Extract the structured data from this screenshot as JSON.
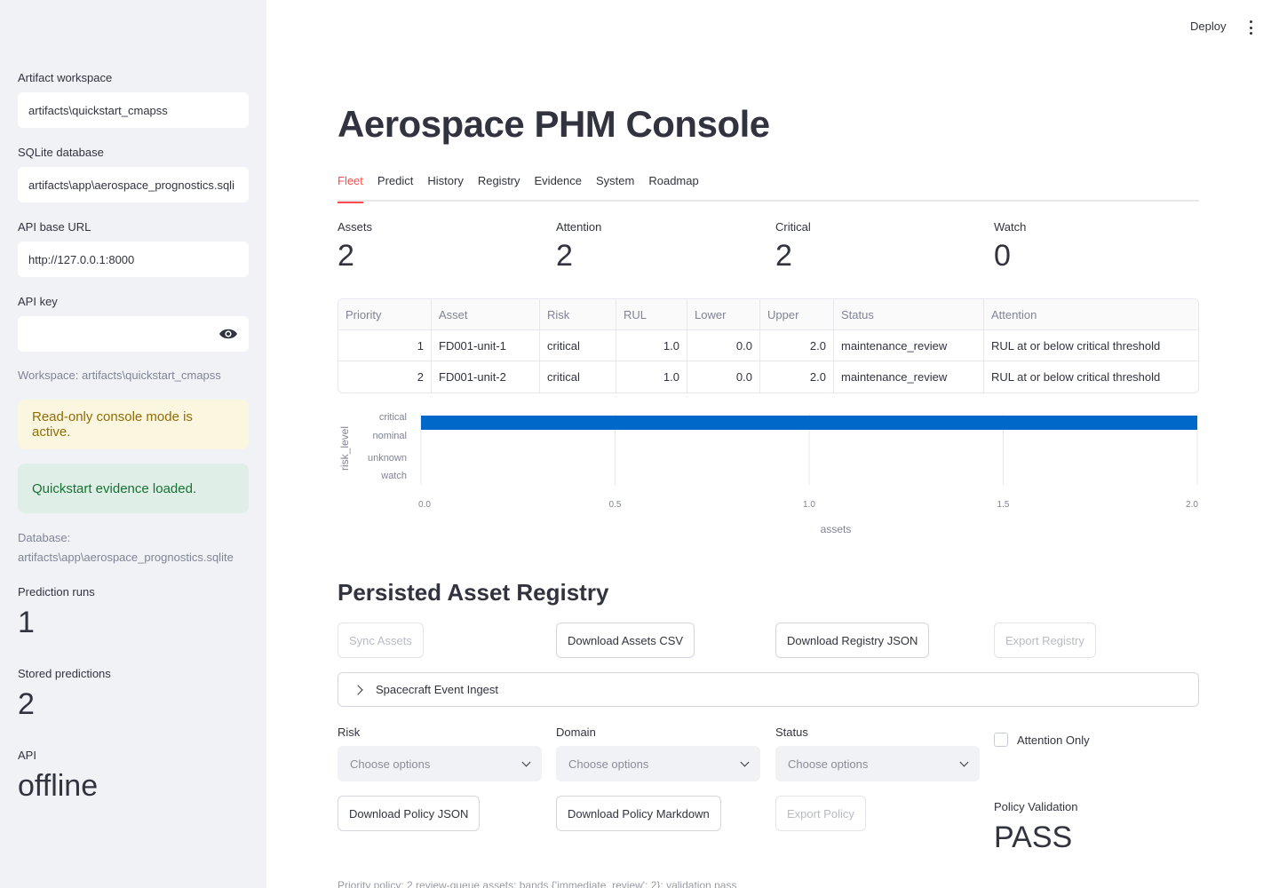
{
  "sidebar": {
    "workspace_label": "Artifact workspace",
    "workspace_value": "artifacts\\quickstart_cmapss",
    "db_label": "SQLite database",
    "db_value": "artifacts\\app\\aerospace_prognostics.sqli",
    "api_url_label": "API base URL",
    "api_url_value": "http://127.0.0.1:8000",
    "api_key_label": "API key",
    "api_key_value": "",
    "workspace_caption": "Workspace: artifacts\\quickstart_cmapss",
    "alert_readonly": "Read-only console mode is active.",
    "alert_quickstart": "Quickstart evidence loaded.",
    "database_caption_line1": "Database:",
    "database_caption_line2": "artifacts\\app\\aerospace_prognostics.sqlite",
    "prediction_runs_label": "Prediction runs",
    "prediction_runs_value": "1",
    "stored_predictions_label": "Stored predictions",
    "stored_predictions_value": "2",
    "api_label": "API",
    "api_value": "offline"
  },
  "header": {
    "deploy_label": "Deploy"
  },
  "main": {
    "title": "Aerospace PHM Console",
    "tabs": [
      {
        "label": "Fleet",
        "active": true
      },
      {
        "label": "Predict"
      },
      {
        "label": "History"
      },
      {
        "label": "Registry"
      },
      {
        "label": "Evidence"
      },
      {
        "label": "System"
      },
      {
        "label": "Roadmap"
      }
    ],
    "metrics": [
      {
        "label": "Assets",
        "value": "2"
      },
      {
        "label": "Attention",
        "value": "2"
      },
      {
        "label": "Critical",
        "value": "2"
      },
      {
        "label": "Watch",
        "value": "0"
      }
    ],
    "table": {
      "columns": [
        "Priority",
        "Asset",
        "Risk",
        "RUL",
        "Lower",
        "Upper",
        "Status",
        "Attention"
      ],
      "rows": [
        [
          "1",
          "FD001-unit-1",
          "critical",
          "1.0",
          "0.0",
          "2.0",
          "maintenance_review",
          "RUL at or below critical threshold"
        ],
        [
          "2",
          "FD001-unit-2",
          "critical",
          "1.0",
          "0.0",
          "2.0",
          "maintenance_review",
          "RUL at or below critical threshold"
        ]
      ]
    }
  },
  "chart_data": {
    "type": "bar",
    "orientation": "horizontal",
    "categories": [
      "critical",
      "nominal",
      "unknown",
      "watch"
    ],
    "values": [
      2,
      0,
      0,
      0
    ],
    "xlabel": "assets",
    "ylabel": "risk_level",
    "xlim": [
      0,
      2
    ],
    "xticks": [
      "0.0",
      "0.5",
      "1.0",
      "1.5",
      "2.0"
    ],
    "bar_color": "#0068c9",
    "grid": true
  },
  "registry": {
    "title": "Persisted Asset Registry",
    "buttons": {
      "sync_assets": "Sync Assets",
      "download_assets_csv": "Download Assets CSV",
      "download_registry_json": "Download Registry JSON",
      "export_registry": "Export Registry"
    },
    "expander_label": "Spacecraft Event Ingest",
    "filters": {
      "risk_label": "Risk",
      "domain_label": "Domain",
      "status_label": "Status",
      "placeholder": "Choose options",
      "attention_only_label": "Attention Only"
    },
    "policy_buttons": {
      "download_policy_json": "Download Policy JSON",
      "download_policy_markdown": "Download Policy Markdown",
      "export_policy": "Export Policy"
    },
    "policy_validation_label": "Policy Validation",
    "policy_validation_value": "PASS",
    "footnote": "Priority policy: 2 review-queue assets; bands {'immediate_review': 2}; validation pass"
  }
}
